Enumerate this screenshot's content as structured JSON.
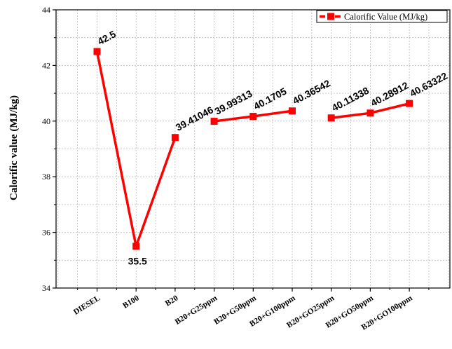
{
  "chart_data": {
    "type": "line",
    "ylabel": "Calorific value (MJ/kg)",
    "xlabel": "",
    "ylim": [
      34,
      44
    ],
    "yticks": [
      34,
      36,
      38,
      40,
      42,
      44
    ],
    "grid": true,
    "legend_position": "top-right",
    "colors": {
      "series": "#ff0000",
      "axis": "#000000",
      "grid": "#bbbbbb"
    },
    "categories": [
      "DIESEL",
      "B100",
      "B20",
      "B20+G25ppm",
      "B20+G50ppm",
      "B20+G100ppm",
      "B20+GO25ppm",
      "B20+GO50ppm",
      "B20+GO100ppm"
    ],
    "series": [
      {
        "name": "Calorific Value (MJ/kg)",
        "values": [
          42.5,
          35.5,
          39.41046,
          39.99313,
          40.1705,
          40.36542,
          40.11338,
          40.28912,
          40.63322
        ],
        "labels": [
          "42.5",
          "35.5",
          "39.41046",
          "39.99313",
          "40.1705",
          "40.36542",
          "40.11338",
          "40.28912",
          "40.63322"
        ],
        "segments": [
          [
            0,
            2
          ],
          [
            3,
            5
          ],
          [
            6,
            8
          ]
        ]
      }
    ]
  }
}
